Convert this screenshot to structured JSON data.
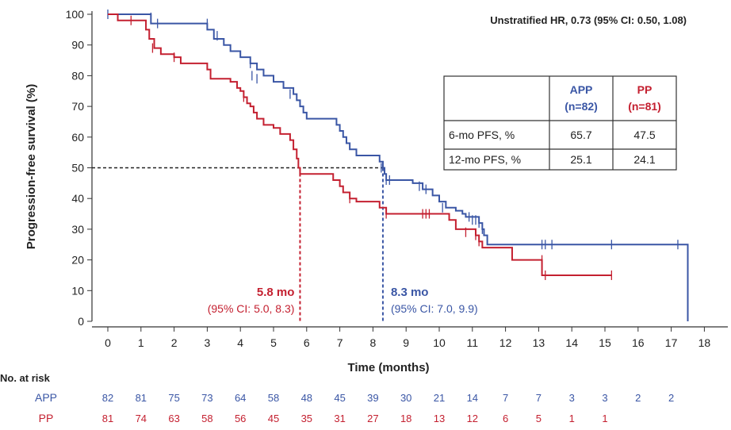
{
  "chart_data": {
    "type": "line",
    "subtype": "kaplan-meier",
    "title": "",
    "xlabel": "Time (months)",
    "ylabel": "Progression-free survival (%)",
    "xlim": [
      0,
      18
    ],
    "ylim": [
      0,
      100
    ],
    "x_ticks": [
      0,
      1,
      2,
      3,
      4,
      5,
      6,
      7,
      8,
      9,
      10,
      11,
      12,
      13,
      14,
      15,
      16,
      17,
      18
    ],
    "y_ticks": [
      0,
      10,
      20,
      30,
      40,
      50,
      60,
      70,
      80,
      90,
      100
    ],
    "annotation": "Unstratified HR, 0.73 (95% CI: 0.50, 1.08)",
    "series": [
      {
        "name": "APP",
        "color": "#3a56a5",
        "steps": [
          [
            0,
            100
          ],
          [
            1.3,
            100
          ],
          [
            1.3,
            97
          ],
          [
            3.0,
            97
          ],
          [
            3.0,
            95
          ],
          [
            3.2,
            92
          ],
          [
            3.5,
            90
          ],
          [
            3.7,
            88
          ],
          [
            4.0,
            86
          ],
          [
            4.3,
            84
          ],
          [
            4.5,
            82
          ],
          [
            4.7,
            80
          ],
          [
            5.0,
            78
          ],
          [
            5.3,
            76
          ],
          [
            5.6,
            74
          ],
          [
            5.7,
            72
          ],
          [
            5.8,
            70
          ],
          [
            5.9,
            68
          ],
          [
            6.0,
            66
          ],
          [
            6.9,
            66
          ],
          [
            6.9,
            64
          ],
          [
            7.0,
            62
          ],
          [
            7.1,
            60
          ],
          [
            7.2,
            58
          ],
          [
            7.3,
            56
          ],
          [
            7.5,
            54
          ],
          [
            8.2,
            54
          ],
          [
            8.2,
            52
          ],
          [
            8.3,
            50
          ],
          [
            8.35,
            48
          ],
          [
            8.4,
            46
          ],
          [
            9.0,
            46
          ],
          [
            9.2,
            45
          ],
          [
            9.5,
            43
          ],
          [
            9.8,
            41
          ],
          [
            10.0,
            39
          ],
          [
            10.2,
            37
          ],
          [
            10.5,
            36
          ],
          [
            10.7,
            35
          ],
          [
            10.8,
            34
          ],
          [
            11.2,
            32
          ],
          [
            11.3,
            30
          ],
          [
            11.35,
            28
          ],
          [
            11.45,
            25
          ],
          [
            17.5,
            25
          ],
          [
            17.5,
            0
          ]
        ],
        "censored": [
          [
            0,
            100
          ],
          [
            1.3,
            99
          ],
          [
            1.5,
            97
          ],
          [
            3.0,
            97
          ],
          [
            3.3,
            93
          ],
          [
            4.3,
            84
          ],
          [
            4.35,
            80
          ],
          [
            4.5,
            79
          ],
          [
            5.5,
            74
          ],
          [
            8.25,
            50
          ],
          [
            8.4,
            46
          ],
          [
            8.5,
            46
          ],
          [
            9.4,
            44
          ],
          [
            9.6,
            43
          ],
          [
            10.1,
            37
          ],
          [
            10.9,
            34
          ],
          [
            11.0,
            33
          ],
          [
            11.1,
            33
          ],
          [
            11.2,
            32
          ],
          [
            11.3,
            30
          ],
          [
            13.1,
            25
          ],
          [
            13.2,
            25
          ],
          [
            13.4,
            25
          ],
          [
            15.2,
            25
          ],
          [
            17.2,
            25
          ]
        ],
        "landmarks": {
          "pfs_6mo": 65.7,
          "pfs_12mo": 25.1
        },
        "n": 82,
        "median": 8.3,
        "median_ci": [
          7.0,
          9.9
        ]
      },
      {
        "name": "PP",
        "color": "#c42030",
        "steps": [
          [
            0,
            100
          ],
          [
            0.3,
            100
          ],
          [
            0.3,
            98
          ],
          [
            1.15,
            98
          ],
          [
            1.15,
            95
          ],
          [
            1.25,
            92
          ],
          [
            1.4,
            89
          ],
          [
            1.6,
            87
          ],
          [
            2.0,
            86
          ],
          [
            2.2,
            84
          ],
          [
            2.9,
            84
          ],
          [
            3.0,
            82
          ],
          [
            3.1,
            79
          ],
          [
            3.6,
            79
          ],
          [
            3.7,
            78
          ],
          [
            3.9,
            76
          ],
          [
            4.0,
            75
          ],
          [
            4.1,
            73
          ],
          [
            4.2,
            71
          ],
          [
            4.3,
            70
          ],
          [
            4.4,
            68
          ],
          [
            4.5,
            66
          ],
          [
            4.7,
            64
          ],
          [
            5.0,
            63
          ],
          [
            5.2,
            61
          ],
          [
            5.5,
            59
          ],
          [
            5.6,
            56
          ],
          [
            5.7,
            53
          ],
          [
            5.75,
            50
          ],
          [
            5.8,
            48
          ],
          [
            6.8,
            48
          ],
          [
            6.8,
            46
          ],
          [
            7.0,
            44
          ],
          [
            7.1,
            42
          ],
          [
            7.3,
            40
          ],
          [
            7.5,
            39
          ],
          [
            8.2,
            39
          ],
          [
            8.2,
            37
          ],
          [
            8.4,
            35
          ],
          [
            10.3,
            35
          ],
          [
            10.3,
            33
          ],
          [
            10.5,
            30
          ],
          [
            11.1,
            30
          ],
          [
            11.1,
            28
          ],
          [
            11.2,
            26
          ],
          [
            11.3,
            24
          ],
          [
            12.2,
            24
          ],
          [
            12.2,
            20
          ],
          [
            13.1,
            20
          ],
          [
            13.1,
            15
          ],
          [
            15.2,
            15
          ]
        ],
        "censored": [
          [
            0.7,
            98
          ],
          [
            1.35,
            89
          ],
          [
            2.0,
            86
          ],
          [
            4.1,
            73
          ],
          [
            7.3,
            40
          ],
          [
            8.4,
            35
          ],
          [
            9.5,
            35
          ],
          [
            9.6,
            35
          ],
          [
            9.7,
            35
          ],
          [
            10.8,
            29
          ],
          [
            11.1,
            28
          ],
          [
            11.2,
            26
          ],
          [
            13.1,
            20
          ],
          [
            13.2,
            15
          ],
          [
            15.2,
            15
          ]
        ],
        "landmarks": {
          "pfs_6mo": 47.5,
          "pfs_12mo": 24.1
        },
        "n": 81,
        "median": 5.8,
        "median_ci": [
          5.0,
          8.3
        ]
      }
    ],
    "reference_line_y": 50,
    "landmark_table": {
      "columns": [
        {
          "name": "APP",
          "n_label": "(n=82)"
        },
        {
          "name": "PP",
          "n_label": "(n=81)"
        }
      ],
      "rows": [
        {
          "label": "6-mo PFS, %",
          "values": [
            "65.7",
            "47.5"
          ]
        },
        {
          "label": "12-mo PFS, %",
          "values": [
            "25.1",
            "24.1"
          ]
        }
      ]
    },
    "medians": [
      {
        "series": "PP",
        "title": "5.8 mo",
        "ci": "(95% CI: 5.0, 8.3)",
        "x": 5.8
      },
      {
        "series": "APP",
        "title": "8.3 mo",
        "ci": "(95% CI: 7.0, 9.9)",
        "x": 8.3
      }
    ],
    "at_risk": {
      "title": "No. at risk",
      "times": [
        0,
        1,
        2,
        3,
        4,
        5,
        6,
        7,
        8,
        9,
        10,
        11,
        12,
        13,
        14,
        15,
        16,
        17
      ],
      "rows": [
        {
          "label": "APP",
          "counts": [
            82,
            81,
            75,
            73,
            64,
            58,
            48,
            45,
            39,
            30,
            21,
            14,
            7,
            7,
            3,
            3,
            2,
            2
          ]
        },
        {
          "label": "PP",
          "counts": [
            81,
            74,
            63,
            58,
            56,
            45,
            35,
            31,
            27,
            18,
            13,
            12,
            6,
            5,
            1,
            1
          ]
        }
      ]
    }
  }
}
